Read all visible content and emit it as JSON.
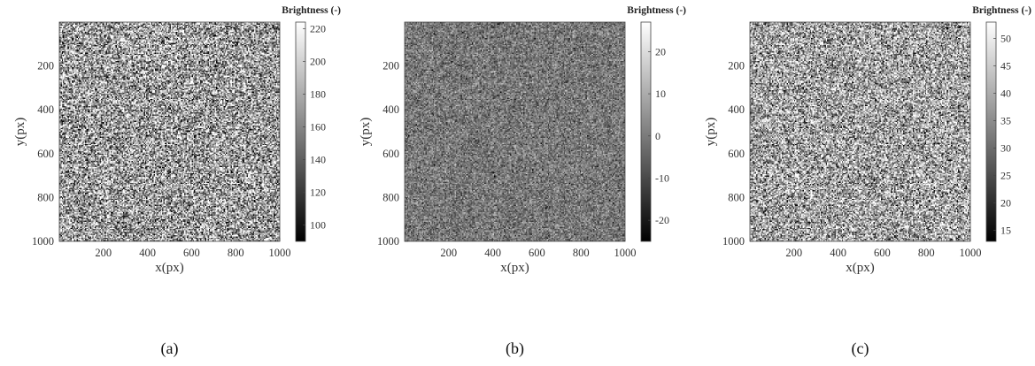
{
  "chart_data": [
    {
      "type": "heatmap",
      "caption": "(a)",
      "xlabel": "x(px)",
      "ylabel": "y(px)",
      "xlim": [
        0,
        1000
      ],
      "ylim": [
        0,
        1000
      ],
      "x_ticks": [
        "200",
        "400",
        "600",
        "800",
        "1000"
      ],
      "y_ticks": [
        "200",
        "400",
        "600",
        "800",
        "1000"
      ],
      "colorbar": {
        "title": "Brightness (-)",
        "range": [
          90,
          224
        ],
        "ticks": [
          "100",
          "120",
          "140",
          "160",
          "180",
          "200",
          "220"
        ],
        "tick_values": [
          100,
          120,
          140,
          160,
          180,
          200,
          220
        ]
      },
      "image": {
        "mean": 0.62,
        "contrast": 0.55,
        "seed": 11
      }
    },
    {
      "type": "heatmap",
      "caption": "(b)",
      "xlabel": "x(px)",
      "ylabel": "y(px)",
      "xlim": [
        0,
        1000
      ],
      "ylim": [
        0,
        1000
      ],
      "x_ticks": [
        "200",
        "400",
        "600",
        "800",
        "1000"
      ],
      "y_ticks": [
        "200",
        "400",
        "600",
        "800",
        "1000"
      ],
      "colorbar": {
        "title": "Brightness (-)",
        "range": [
          -25,
          27
        ],
        "ticks": [
          "-20",
          "-10",
          "0",
          "10",
          "20"
        ],
        "tick_values": [
          -20,
          -10,
          0,
          10,
          20
        ]
      },
      "image": {
        "mean": 0.47,
        "contrast": 0.22,
        "seed": 29
      }
    },
    {
      "type": "heatmap",
      "caption": "(c)",
      "xlabel": "x(px)",
      "ylabel": "y(px)",
      "xlim": [
        0,
        1000
      ],
      "ylim": [
        0,
        1000
      ],
      "x_ticks": [
        "200",
        "400",
        "600",
        "800",
        "1000"
      ],
      "y_ticks": [
        "200",
        "400",
        "600",
        "800",
        "1000"
      ],
      "colorbar": {
        "title": "Brightness (-)",
        "range": [
          13,
          53
        ],
        "ticks": [
          "15",
          "20",
          "25",
          "30",
          "35",
          "40",
          "45",
          "50"
        ],
        "tick_values": [
          15,
          20,
          25,
          30,
          35,
          40,
          45,
          50
        ]
      },
      "image": {
        "mean": 0.64,
        "contrast": 0.5,
        "seed": 47
      }
    }
  ]
}
